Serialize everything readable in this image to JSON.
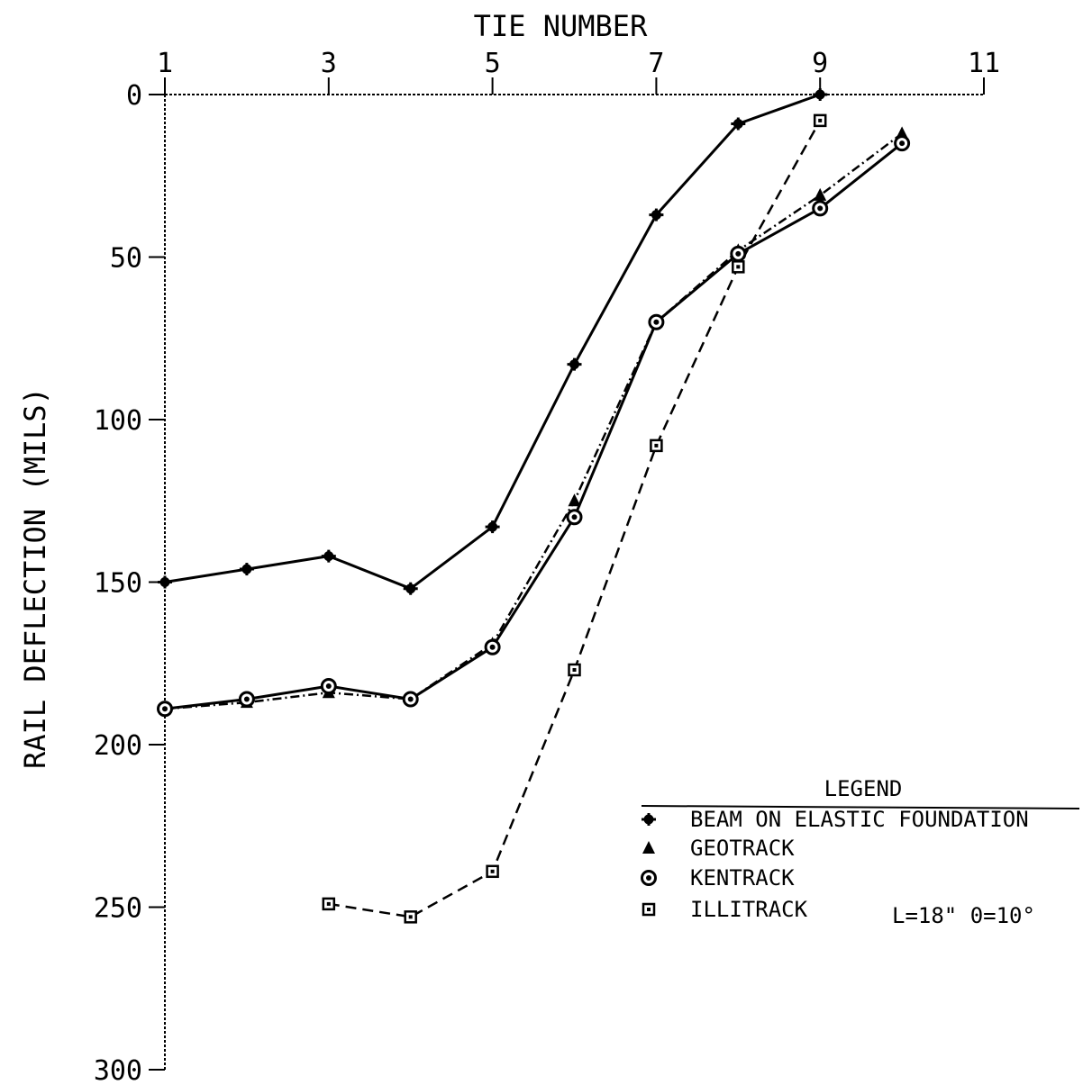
{
  "chart_data": {
    "type": "line",
    "title": "",
    "xlabel": "TIE NUMBER",
    "ylabel": "RAIL DEFLECTION (MILS)",
    "x_axis_position": "top",
    "y_axis_inverted": true,
    "xlim": [
      1,
      11
    ],
    "ylim": [
      0,
      300
    ],
    "x_ticks": [
      1,
      3,
      5,
      7,
      9,
      11
    ],
    "y_ticks": [
      0,
      50,
      100,
      150,
      200,
      250,
      300
    ],
    "x_tick_labels": [
      "1",
      "3",
      "5",
      "7",
      "9",
      "11"
    ],
    "y_tick_labels": [
      "0",
      "50",
      "100",
      "150",
      "200",
      "250",
      "300"
    ],
    "grid": false,
    "legend": {
      "title": "LEGEND",
      "placement": "lower-right",
      "note": "L=18\"   0=10°"
    },
    "series": [
      {
        "name": "BEAM ON ELASTIC FOUNDATION",
        "marker": "star",
        "line": "solid",
        "x": [
          1,
          2,
          3,
          4,
          5,
          6,
          7,
          8,
          9
        ],
        "y": [
          150,
          146,
          142,
          152,
          133,
          83,
          37,
          9,
          0
        ]
      },
      {
        "name": "GEOTRACK",
        "marker": "triangle",
        "line": "dashdot",
        "x": [
          1,
          2,
          3,
          4,
          5,
          6,
          7,
          8,
          9,
          10
        ],
        "y": [
          189,
          187,
          184,
          186,
          169,
          125,
          70,
          48,
          31,
          12
        ]
      },
      {
        "name": "KENTRACK",
        "marker": "circle",
        "line": "solid",
        "x": [
          1,
          2,
          3,
          4,
          5,
          6,
          7,
          8,
          9,
          10
        ],
        "y": [
          189,
          186,
          182,
          186,
          170,
          130,
          70,
          49,
          35,
          15
        ]
      },
      {
        "name": "ILLITRACK",
        "marker": "square",
        "line": "dashed",
        "x": [
          3,
          4,
          5,
          6,
          7,
          8,
          9
        ],
        "y": [
          249,
          253,
          239,
          177,
          108,
          53,
          8
        ]
      }
    ]
  }
}
